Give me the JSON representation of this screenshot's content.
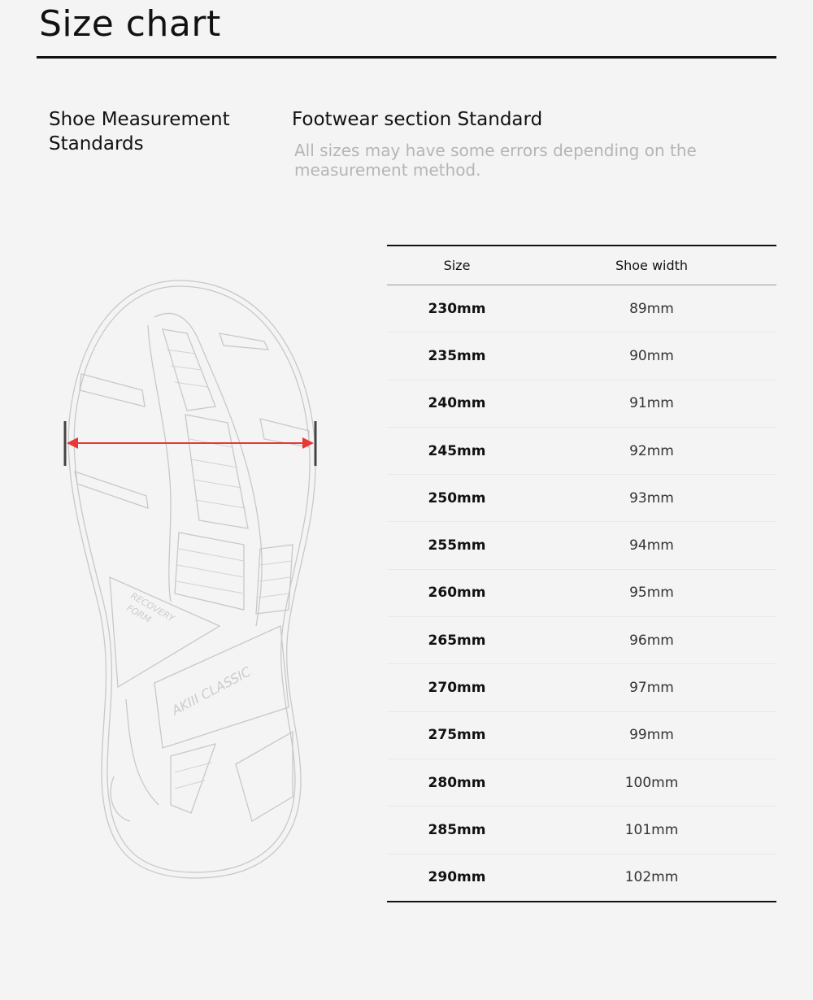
{
  "page": {
    "title": "Size chart"
  },
  "standards": {
    "label": "Shoe Measurement Standards",
    "heading": "Footwear section Standard",
    "note": "All sizes may have some errors depending on the measurement method."
  },
  "illustration": {
    "logo_text": [
      "RECOVERY FORM",
      "AKIII CLASSIC"
    ],
    "arrow_color": "#e53935"
  },
  "table": {
    "headers": [
      "Size",
      "Shoe width"
    ],
    "rows": [
      [
        "230mm",
        "89mm"
      ],
      [
        "235mm",
        "90mm"
      ],
      [
        "240mm",
        "91mm"
      ],
      [
        "245mm",
        "92mm"
      ],
      [
        "250mm",
        "93mm"
      ],
      [
        "255mm",
        "94mm"
      ],
      [
        "260mm",
        "95mm"
      ],
      [
        "265mm",
        "96mm"
      ],
      [
        "270mm",
        "97mm"
      ],
      [
        "275mm",
        "99mm"
      ],
      [
        "280mm",
        "100mm"
      ],
      [
        "285mm",
        "101mm"
      ],
      [
        "290mm",
        "102mm"
      ]
    ]
  }
}
